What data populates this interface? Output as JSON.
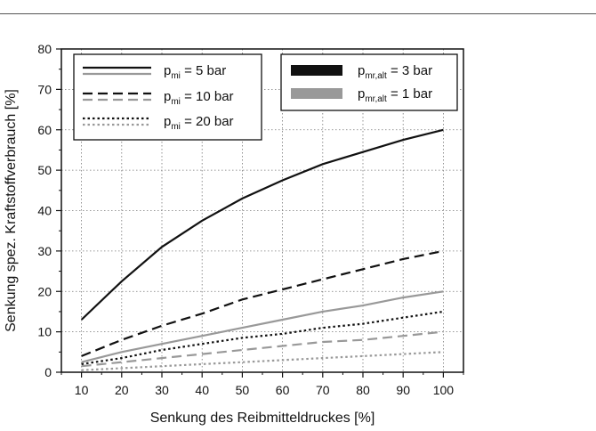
{
  "chart_data": {
    "type": "line",
    "xlabel": "Senkung des Reibmitteldruckes [%]",
    "ylabel": "Senkung spez. Kraftstoffverbrauch [%]",
    "xlim": [
      5,
      105
    ],
    "ylim": [
      0,
      80
    ],
    "xticks": [
      10,
      20,
      30,
      40,
      50,
      60,
      70,
      80,
      90,
      100
    ],
    "yticks": [
      0,
      10,
      20,
      30,
      40,
      50,
      60,
      70,
      80
    ],
    "grid": true,
    "x": [
      10,
      20,
      30,
      40,
      50,
      60,
      70,
      80,
      90,
      100
    ],
    "legend_left": [
      {
        "prefix": "p",
        "sub": "mi",
        "suffix": " =   5 bar",
        "style": "solid"
      },
      {
        "prefix": "p",
        "sub": "mi",
        "suffix": " = 10 bar",
        "style": "dashed"
      },
      {
        "prefix": "p",
        "sub": "mi",
        "suffix": " = 20 bar",
        "style": "dotted"
      }
    ],
    "legend_right": [
      {
        "prefix": "p",
        "sub": "mr,alt",
        "suffix": " = 3 bar",
        "color": "#111111"
      },
      {
        "prefix": "p",
        "sub": "mr,alt",
        "suffix": " = 1 bar",
        "color": "#999999"
      }
    ],
    "series": [
      {
        "pmi": 5,
        "pmr_alt": 3,
        "color": "#111111",
        "dash": "solid",
        "values": [
          13,
          22.5,
          31,
          37.5,
          43,
          47.5,
          51.5,
          54.5,
          57.5,
          60
        ]
      },
      {
        "pmi": 10,
        "pmr_alt": 3,
        "color": "#111111",
        "dash": "dashed",
        "values": [
          4,
          8,
          11.5,
          14.5,
          18,
          20.5,
          23,
          25.5,
          28,
          30
        ]
      },
      {
        "pmi": 20,
        "pmr_alt": 3,
        "color": "#111111",
        "dash": "dotted",
        "values": [
          2,
          3.5,
          5.5,
          7,
          8.5,
          9.5,
          11,
          12,
          13.5,
          15
        ]
      },
      {
        "pmi": 5,
        "pmr_alt": 1,
        "color": "#999999",
        "dash": "solid",
        "values": [
          2.5,
          5,
          7,
          9,
          11,
          13,
          15,
          16.5,
          18.5,
          20
        ]
      },
      {
        "pmi": 10,
        "pmr_alt": 1,
        "color": "#999999",
        "dash": "dashed",
        "values": [
          1.5,
          2.5,
          3.5,
          4.5,
          5.5,
          6.5,
          7.5,
          8,
          9,
          10
        ]
      },
      {
        "pmi": 20,
        "pmr_alt": 1,
        "color": "#999999",
        "dash": "dotted",
        "values": [
          0.5,
          1,
          1.5,
          2,
          2.5,
          3,
          3.5,
          4,
          4.5,
          5
        ]
      }
    ]
  }
}
